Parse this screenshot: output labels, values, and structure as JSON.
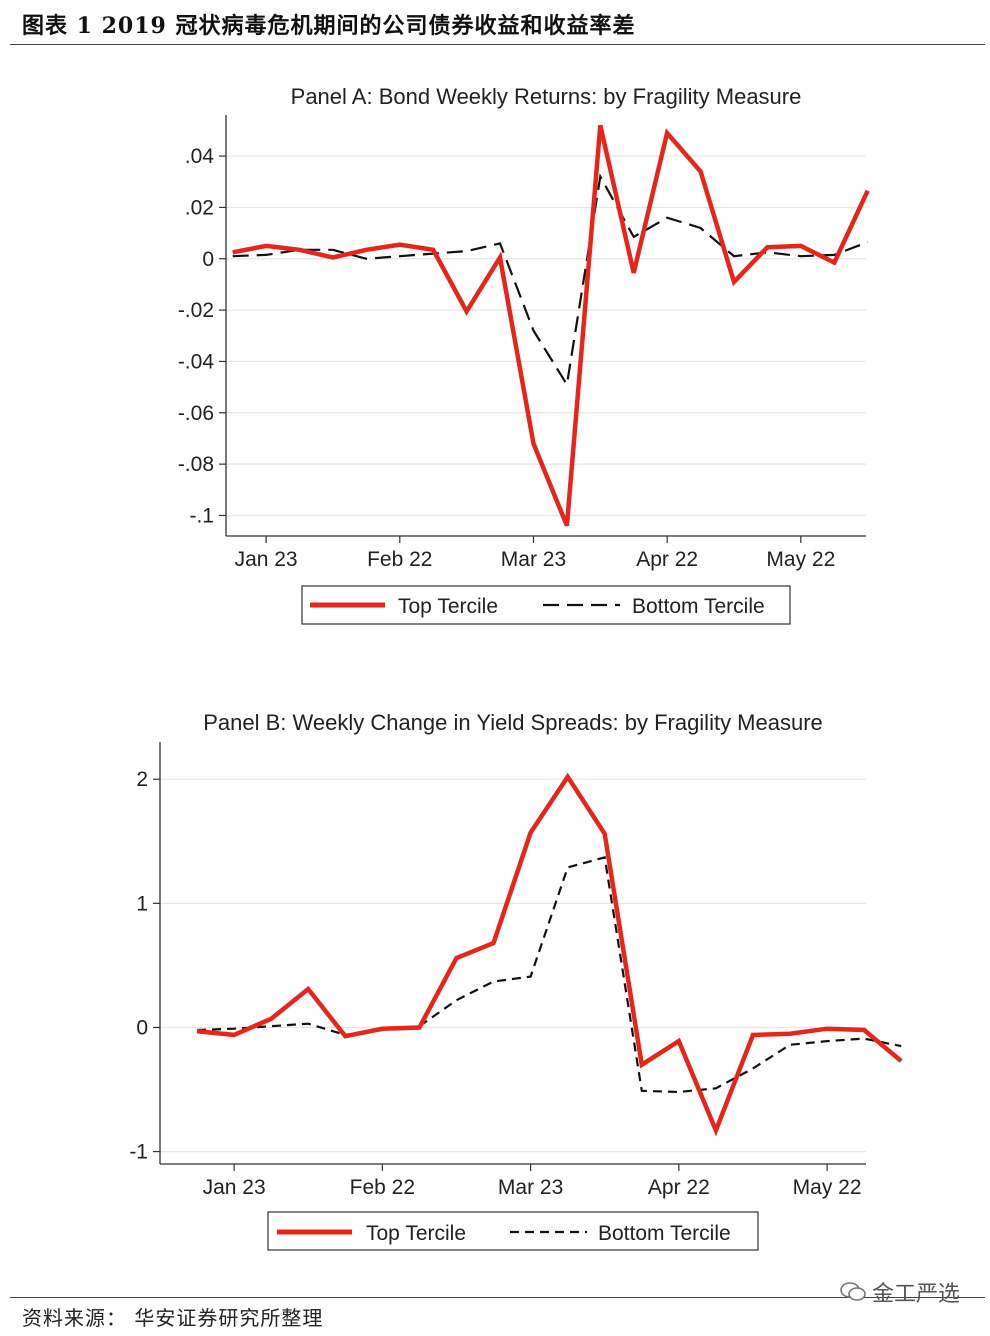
{
  "figure_title": "图表 1 2019 冠状病毒危机期间的公司债券收益和收益率差",
  "footer_source": "资料来源：  华安证券研究所整理",
  "watermark": "金工严选",
  "colors": {
    "top": "#e8251c",
    "bottom": "#111111",
    "grid": "#e6e6e6",
    "axis": "#333333"
  },
  "chart_data": [
    {
      "type": "line",
      "title": "Panel A: Bond Weekly Returns: by Fragility Measure",
      "xlabel": "",
      "ylabel": "",
      "x": [
        1,
        2,
        3,
        4,
        5,
        6,
        7,
        8,
        9,
        10,
        11,
        12,
        13,
        14,
        15,
        16,
        17,
        18,
        19,
        20
      ],
      "xticks": [
        {
          "x": 2,
          "label": "Jan 23"
        },
        {
          "x": 6,
          "label": "Feb 22"
        },
        {
          "x": 10,
          "label": "Mar 23"
        },
        {
          "x": 14,
          "label": "Apr 22"
        },
        {
          "x": 18,
          "label": "May 22"
        }
      ],
      "xlim": [
        0.8,
        19.95
      ],
      "yticks": [
        0.04,
        0.02,
        0,
        -0.02,
        -0.04,
        -0.06,
        -0.08,
        -0.1
      ],
      "ytick_labels": [
        ".04",
        ".02",
        "0",
        "-.02",
        "-.04",
        "-.06",
        "-.08",
        "-.1"
      ],
      "ylim": [
        -0.108,
        0.056
      ],
      "series": [
        {
          "name": "Top Tercile",
          "style": "solid",
          "values": [
            0.0025,
            0.005,
            0.0035,
            0.0005,
            0.0035,
            0.0055,
            0.0035,
            -0.0205,
            0.0005,
            -0.072,
            -0.104,
            0.052,
            -0.0055,
            0.049,
            0.034,
            -0.009,
            0.0045,
            0.005,
            -0.0015,
            0.0265
          ]
        },
        {
          "name": "Bottom Tercile",
          "style": "dashed",
          "values": [
            0.001,
            0.0015,
            0.0035,
            0.0035,
            0.0,
            0.001,
            0.002,
            0.003,
            0.006,
            -0.028,
            -0.049,
            0.032,
            0.0085,
            0.016,
            0.012,
            0.001,
            0.0025,
            0.001,
            0.0015,
            0.0065
          ]
        }
      ],
      "legend": [
        "Top Tercile",
        "Bottom Tercile"
      ],
      "legend_position": "bottom"
    },
    {
      "type": "line",
      "title": "Panel B: Weekly Change in Yield Spreads: by Fragility Measure",
      "xlabel": "",
      "ylabel": "",
      "x": [
        1,
        2,
        3,
        4,
        5,
        6,
        7,
        8,
        9,
        10,
        11,
        12,
        13,
        14,
        15,
        16,
        17,
        18,
        19,
        20
      ],
      "xticks": [
        {
          "x": 2,
          "label": "Jan 23"
        },
        {
          "x": 6,
          "label": "Feb 22"
        },
        {
          "x": 10,
          "label": "Mar 23"
        },
        {
          "x": 14,
          "label": "Apr 22"
        },
        {
          "x": 18,
          "label": "May 22"
        }
      ],
      "xlim": [
        0.0,
        19.05
      ],
      "yticks": [
        2,
        1,
        0,
        -1
      ],
      "ytick_labels": [
        "2",
        "1",
        "0",
        "-1"
      ],
      "ylim": [
        -1.1,
        2.3
      ],
      "series": [
        {
          "name": "Top Tercile",
          "style": "solid",
          "values": [
            -0.03,
            -0.06,
            0.07,
            0.31,
            -0.07,
            -0.01,
            0.0,
            0.56,
            0.68,
            1.57,
            2.02,
            1.56,
            -0.3,
            -0.11,
            -0.83,
            -0.06,
            -0.05,
            -0.01,
            -0.02,
            -0.27
          ]
        },
        {
          "name": "Bottom Tercile",
          "style": "dashed",
          "values": [
            -0.02,
            -0.01,
            0.01,
            0.03,
            -0.06,
            -0.02,
            0.01,
            0.22,
            0.37,
            0.41,
            1.29,
            1.37,
            -0.51,
            -0.52,
            -0.49,
            -0.33,
            -0.14,
            -0.11,
            -0.09,
            -0.15
          ]
        }
      ],
      "legend": [
        "Top Tercile",
        "Bottom Tercile"
      ],
      "legend_position": "bottom"
    }
  ]
}
